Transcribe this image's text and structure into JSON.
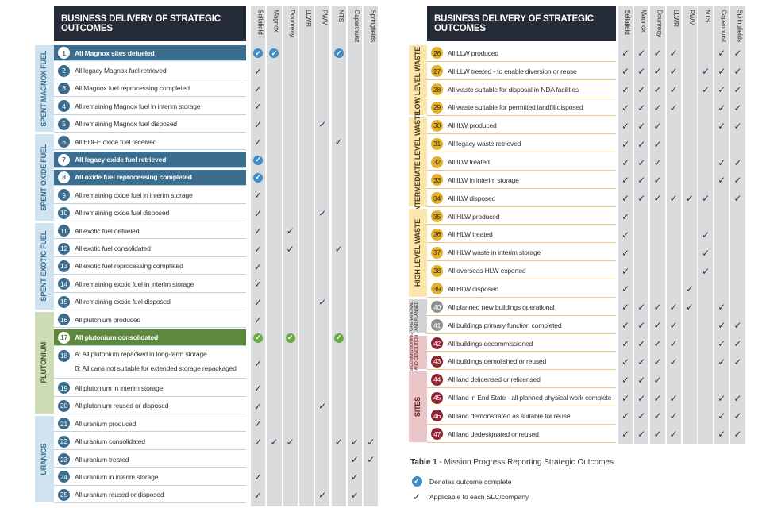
{
  "title": "BUSINESS DELIVERY OF STRATEGIC OUTCOMES",
  "columns": [
    "Sellafield",
    "Magnox",
    "Dounreay",
    "LLWR",
    "RWM",
    "NTS",
    "Capenhurst",
    "Springfields"
  ],
  "left": {
    "sections": [
      {
        "label": "SPENT MAGNOX FUEL",
        "color": "#cfe3f1",
        "text": "#3a6d8e",
        "start": 0,
        "count": 5
      },
      {
        "label": "SPENT OXIDE FUEL",
        "color": "#cfe3f1",
        "text": "#3a6d8e",
        "start": 5,
        "count": 5
      },
      {
        "label": "SPENT EXOTIC FUEL",
        "color": "#cfe3f1",
        "text": "#3a6d8e",
        "start": 10,
        "count": 5
      },
      {
        "label": "PLUTONIUM",
        "color": "#cfddb7",
        "text": "#3c5e25",
        "start": 15,
        "count": 5
      },
      {
        "label": "URANICS",
        "color": "#cfe3f1",
        "text": "#3a6d8e",
        "start": 20,
        "count": 5
      }
    ],
    "rows": [
      {
        "n": "1",
        "text": "All Magnox sites defueled",
        "hl": "blue",
        "marks": "OO---O--"
      },
      {
        "n": "2",
        "text": "All legacy Magnox fuel retrieved",
        "marks": "V-------"
      },
      {
        "n": "3",
        "text": "All Magnox fuel reprocessing completed",
        "marks": "V-------"
      },
      {
        "n": "4",
        "text": "All remaining Magnox fuel in interim storage",
        "marks": "V-------"
      },
      {
        "n": "5",
        "text": "All remaining Magnox fuel disposed",
        "marks": "V---V---"
      },
      {
        "n": "6",
        "text": "All EDFE oxide fuel received",
        "marks": "V----V--"
      },
      {
        "n": "7",
        "text": "All legacy oxide fuel retrieved",
        "hl": "blue",
        "marks": "O-------"
      },
      {
        "n": "8",
        "text": "All oxide fuel reprocessing completed",
        "hl": "blue",
        "marks": "O-------"
      },
      {
        "n": "9",
        "text": "All remaining oxide fuel in interim storage",
        "marks": "V-------"
      },
      {
        "n": "10",
        "text": "All remaining oxide fuel disposed",
        "marks": "V---V---"
      },
      {
        "n": "11",
        "text": "All exotic fuel defueled",
        "marks": "V-V-----"
      },
      {
        "n": "12",
        "text": "All exotic fuel consolidated",
        "marks": "V-V--V--"
      },
      {
        "n": "13",
        "text": "All exotic fuel reprocessing completed",
        "marks": "V-------"
      },
      {
        "n": "14",
        "text": "All remaining exotic fuel in interim storage",
        "marks": "V-------"
      },
      {
        "n": "15",
        "text": "All remaining exotic fuel disposed",
        "marks": "V---V---"
      },
      {
        "n": "16",
        "text": "All plutonium produced",
        "marks": "V-------"
      },
      {
        "n": "17",
        "text": "All plutonium consolidated",
        "hl": "green",
        "marks": "G-G--G--"
      },
      {
        "n": "18",
        "text": "A: All plutonium repacked in long-term storage",
        "text2": "B: All cans not suitable for extended storage repackaged",
        "marks": "V-------",
        "tall": true
      },
      {
        "n": "19",
        "text": "All plutonium in interim storage",
        "marks": "V-------"
      },
      {
        "n": "20",
        "text": "All plutonium reused or disposed",
        "marks": "V---V---"
      },
      {
        "n": "21",
        "text": "All uranium produced",
        "marks": "V-------"
      },
      {
        "n": "22",
        "text": "All uranium consolidated",
        "marks": "VVV--VVV"
      },
      {
        "n": "23",
        "text": "All uranium treated",
        "marks": "------VV"
      },
      {
        "n": "24",
        "text": "All uranium in interim storage",
        "marks": "V-----V-"
      },
      {
        "n": "25",
        "text": "All uranium reused or disposed",
        "marks": "V---V-V-"
      }
    ]
  },
  "right": {
    "sections": [
      {
        "label": "LOW LEVEL WASTE",
        "color": "#fbe7ad",
        "text": "#4a3a10",
        "start": 0,
        "count": 4
      },
      {
        "label": "INTERMEDIATE LEVEL WASTE",
        "color": "#fbe7ad",
        "text": "#4a3a10",
        "start": 4,
        "count": 5
      },
      {
        "label": "HIGH LEVEL WASTE",
        "color": "#fbe7ad",
        "text": "#4a3a10",
        "start": 9,
        "count": 5
      },
      {
        "label": "OPERATIONAL AND PLANNED",
        "color": "#d3d4d6",
        "text": "#333",
        "start": 14,
        "count": 2,
        "small": true
      },
      {
        "label": "DECOMMISSIONING AND DEMOLITION",
        "color": "#e9c6c8",
        "text": "#6a1b26",
        "start": 16,
        "count": 2,
        "small": true
      },
      {
        "label": "SITES",
        "color": "#e9c6c8",
        "text": "#6a1b26",
        "start": 18,
        "count": 4
      }
    ],
    "rows": [
      {
        "n": "26",
        "text": "All LLW produced",
        "marks": "VVVV--VV",
        "c": "r"
      },
      {
        "n": "27",
        "text": "All LLW treated - to enable diversion or reuse",
        "marks": "VVVV-VVV",
        "c": "r"
      },
      {
        "n": "28",
        "text": "All waste suitable for disposal in NDA facilities",
        "marks": "VVVV-VVV",
        "c": "r"
      },
      {
        "n": "29",
        "text": "All waste suitable for permitted landfill disposed",
        "marks": "VVVV--VV",
        "c": "r"
      },
      {
        "n": "30",
        "text": "All ILW produced",
        "marks": "VVV---VV",
        "c": "r"
      },
      {
        "n": "31",
        "text": "All legacy waste retrieved",
        "marks": "VVV-----",
        "c": "r"
      },
      {
        "n": "32",
        "text": "All ILW treated",
        "marks": "VVV---VV",
        "c": "r"
      },
      {
        "n": "33",
        "text": "All ILW in interim storage",
        "marks": "VVV---VV",
        "c": "r"
      },
      {
        "n": "34",
        "text": "All ILW disposed",
        "marks": "VVVVVV-V",
        "c": "r"
      },
      {
        "n": "35",
        "text": "All HLW produced",
        "marks": "V-------",
        "c": "r"
      },
      {
        "n": "36",
        "text": "All HLW treated",
        "marks": "V----V--",
        "c": "r"
      },
      {
        "n": "37",
        "text": "All HLW waste in interim storage",
        "marks": "V----V--",
        "c": "r"
      },
      {
        "n": "38",
        "text": "All overseas HLW exported",
        "marks": "V----V--",
        "c": "r"
      },
      {
        "n": "39",
        "text": "All HLW disposed",
        "marks": "V---V---",
        "c": "r"
      },
      {
        "n": "40",
        "text": "All planned new buildings operational",
        "marks": "VVVVV-V-",
        "c": "op"
      },
      {
        "n": "41",
        "text": "All buildings primary function completed",
        "marks": "VVVV--VV",
        "c": "op"
      },
      {
        "n": "42",
        "text": "All buildings decommissioned",
        "marks": "VVVV--VV",
        "c": "br"
      },
      {
        "n": "43",
        "text": "All buildings demolished or reused",
        "marks": "VVVV--VV",
        "c": "br"
      },
      {
        "n": "44",
        "text": "All land delicensed or relicensed",
        "marks": "VVV-----",
        "c": "br"
      },
      {
        "n": "45",
        "text": "All land in End State - all planned physical work complete",
        "marks": "VVVV--VV",
        "c": "br"
      },
      {
        "n": "46",
        "text": "All land demonstrated as suitable for reuse",
        "marks": "VVVV--VV",
        "c": "br"
      },
      {
        "n": "47",
        "text": "All land dedesignated or reused",
        "marks": "VVVV--VV",
        "c": "br"
      }
    ]
  },
  "caption": {
    "label": "Table 1",
    "text": " - Mission Progress Reporting Strategic Outcomes"
  },
  "legend": [
    {
      "icon": "complete-circle-icon",
      "text": "Denotes outcome complete"
    },
    {
      "icon": "check-icon",
      "text": "Applicable to each SLC/company"
    }
  ]
}
